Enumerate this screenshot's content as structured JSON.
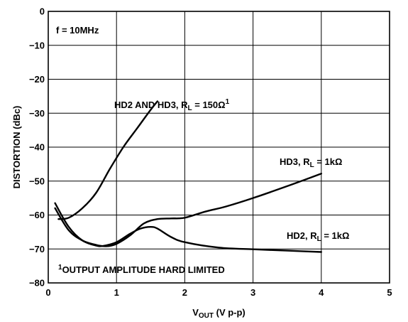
{
  "chart_data": {
    "type": "line",
    "title": "",
    "xlabel": {
      "main": "V",
      "sub": "OUT",
      "rest": " (V p-p)"
    },
    "ylabel": "DISTORTION (dBc)",
    "xlim": [
      0,
      5
    ],
    "ylim": [
      -80,
      0
    ],
    "x_ticks": [
      "0",
      "1",
      "2",
      "3",
      "4",
      "5"
    ],
    "y_ticks": [
      "0",
      "−10",
      "−20",
      "−30",
      "−40",
      "−50",
      "−60",
      "−70",
      "−80"
    ],
    "grid": true,
    "series": [
      {
        "name": "HD2 AND HD3, RL = 150Ω1",
        "x": [
          0.15,
          0.3,
          0.5,
          0.7,
          0.9,
          1.1,
          1.3,
          1.5,
          1.6
        ],
        "y": [
          -61.2,
          -60.8,
          -58,
          -53.5,
          -46.5,
          -40,
          -34.5,
          -29,
          -26.5
        ]
      },
      {
        "name": "HD3, RL = 1kΩ",
        "x": [
          0.1,
          0.3,
          0.5,
          0.7,
          0.85,
          1.0,
          1.2,
          1.4,
          1.6,
          1.8,
          2.0,
          2.3,
          2.6,
          3.0,
          3.5,
          4.0
        ],
        "y": [
          -58,
          -64.5,
          -67.5,
          -68.8,
          -69.2,
          -68.5,
          -66,
          -62.5,
          -61.2,
          -61,
          -60.8,
          -59,
          -57.5,
          -55,
          -51.5,
          -47.8
        ]
      },
      {
        "name": "HD2, RL = 1kΩ",
        "x": [
          0.1,
          0.3,
          0.5,
          0.7,
          0.8,
          1.0,
          1.2,
          1.35,
          1.5,
          1.6,
          1.8,
          2.0,
          2.5,
          3.0,
          3.5,
          4.0
        ],
        "y": [
          -56.5,
          -63.5,
          -67.5,
          -69,
          -69.1,
          -68,
          -65.5,
          -64,
          -63.5,
          -64,
          -66.5,
          -68,
          -69.6,
          -70.1,
          -70.5,
          -70.9
        ]
      }
    ],
    "annotations": {
      "freq": "f = 10MHz",
      "hd2hd3_prefix": "HD2 AND HD3, R",
      "hd2hd3_sub": "L",
      "hd2hd3_suffix": " = 150Ω",
      "hd2hd3_sup": "1",
      "hd3_prefix": "HD3, R",
      "hd3_sub": "L",
      "hd3_suffix": " = 1kΩ",
      "hd2_prefix": "HD2, R",
      "hd2_sub": "L",
      "hd2_suffix": " = 1kΩ",
      "footnote_sup": "1",
      "footnote": "OUTPUT AMPLITUDE HARD LIMITED"
    }
  }
}
